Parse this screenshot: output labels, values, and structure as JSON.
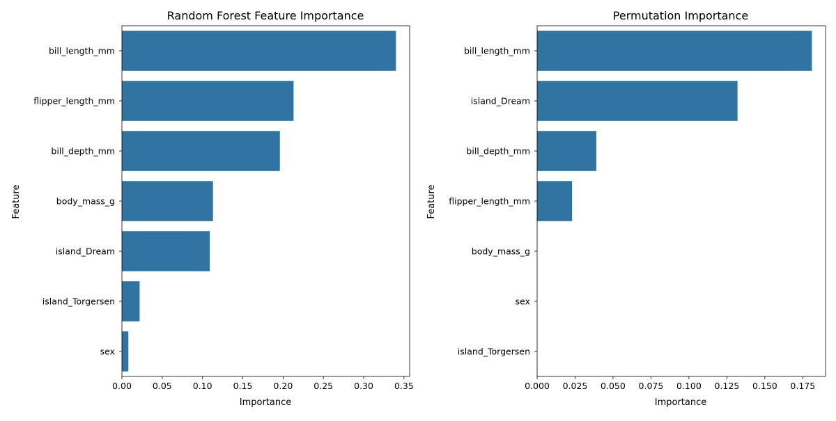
{
  "chart_data": [
    {
      "type": "bar",
      "orientation": "horizontal",
      "title": "Random Forest Feature Importance",
      "xlabel": "Importance",
      "ylabel": "Feature",
      "categories": [
        "bill_length_mm",
        "flipper_length_mm",
        "bill_depth_mm",
        "body_mass_g",
        "island_Dream",
        "island_Torgersen",
        "sex"
      ],
      "values": [
        0.34,
        0.213,
        0.196,
        0.113,
        0.109,
        0.022,
        0.008
      ],
      "xlim": [
        0,
        0.357
      ],
      "xticks": [
        "0.00",
        "0.05",
        "0.10",
        "0.15",
        "0.20",
        "0.25",
        "0.30",
        "0.35"
      ],
      "color": "#3274a1",
      "grid": false,
      "legend": "none"
    },
    {
      "type": "bar",
      "orientation": "horizontal",
      "title": "Permutation Importance",
      "xlabel": "Importance",
      "ylabel": "Feature",
      "categories": [
        "bill_length_mm",
        "island_Dream",
        "bill_depth_mm",
        "flipper_length_mm",
        "body_mass_g",
        "sex",
        "island_Torgersen"
      ],
      "values": [
        0.181,
        0.132,
        0.039,
        0.023,
        0.0,
        0.0,
        0.0
      ],
      "xlim": [
        0,
        0.19
      ],
      "xticks": [
        "0.000",
        "0.025",
        "0.050",
        "0.075",
        "0.100",
        "0.125",
        "0.150",
        "0.175"
      ],
      "color": "#3274a1",
      "grid": false,
      "legend": "none"
    }
  ]
}
